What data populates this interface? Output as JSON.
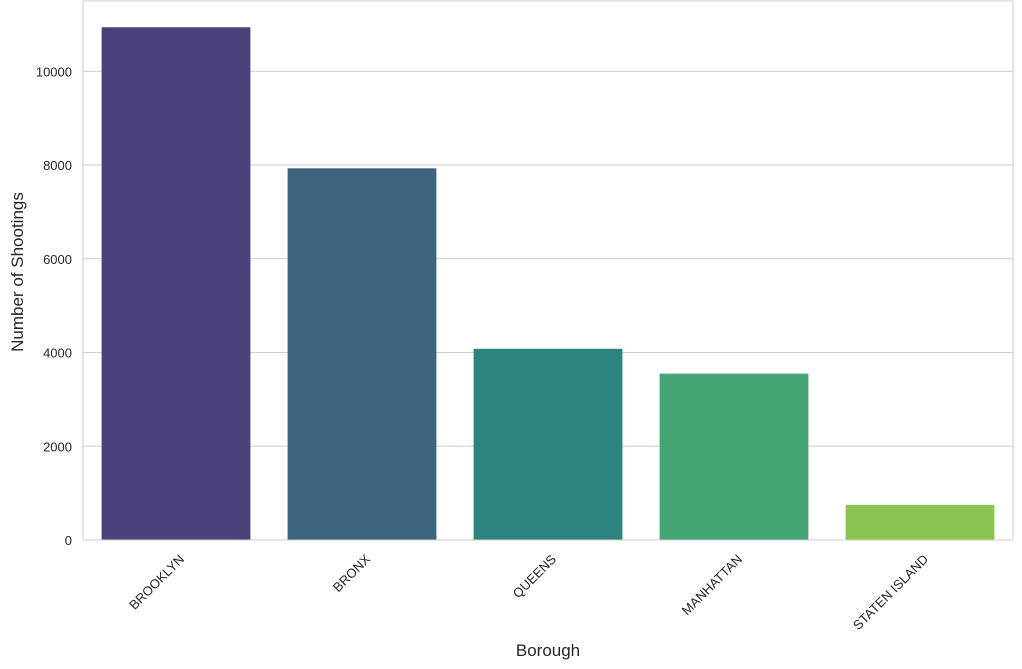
{
  "chart_data": {
    "type": "bar",
    "x_label": "Borough",
    "y_label": "Number of Shootings",
    "categories": [
      "BROOKLYN",
      "BRONX",
      "QUEENS",
      "MANHATTAN",
      "STATEN ISLAND"
    ],
    "values": [
      10940,
      7930,
      4080,
      3550,
      750
    ],
    "colors": [
      "#4a417a",
      "#3e6580",
      "#2e837e",
      "#45a673",
      "#8bc451"
    ],
    "ylim": [
      0,
      11500
    ],
    "yticks": [
      0,
      2000,
      4000,
      6000,
      8000,
      10000
    ],
    "grid": true
  }
}
